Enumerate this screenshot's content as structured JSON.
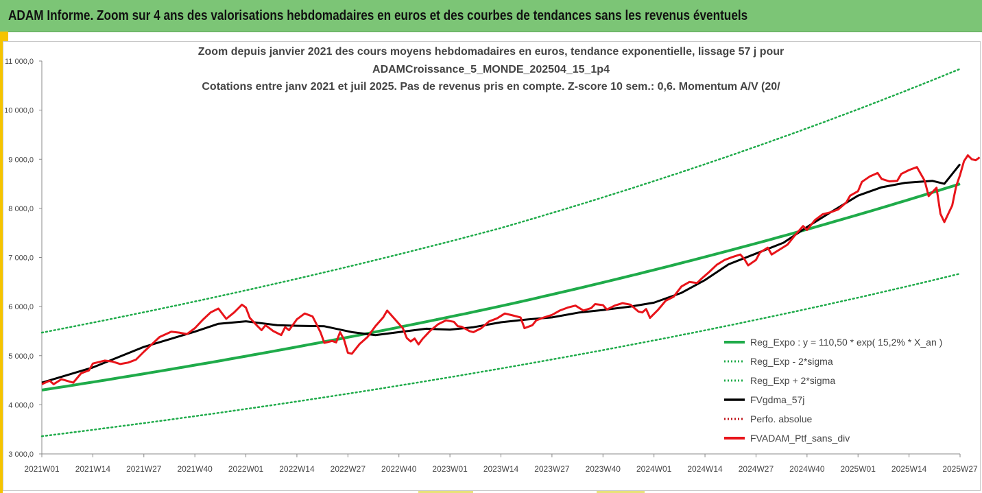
{
  "header": {
    "title": "ADAM Informe. Zoom sur 4 ans des valorisations hebdomadaires en euros et des courbes de tendances sans les revenus éventuels"
  },
  "colors": {
    "header_bg": "#7cc576",
    "accent": "#f5c400",
    "regression": "#1fab4a",
    "moving_average": "#000000",
    "portfolio": "#e8141a"
  },
  "chart_data": {
    "type": "line",
    "title_lines": [
      "Zoom depuis janvier 2021 des cours moyens hebdomadaires  en euros, tendance exponentielle, lissage 57 j pour",
      "ADAMCroissance_5_MONDE_202504_15_1p4",
      "Cotations entre janv 2021 et juil 2025. Pas de revenus pris en compte. Z-score 10 sem.: 0,6. Momentum  A/V (20/"
    ],
    "ylim": [
      3000,
      11000
    ],
    "y_ticks": [
      "3 000,0",
      "4 000,0",
      "5 000,0",
      "6 000,0",
      "7 000,0",
      "8 000,0",
      "9 000,0",
      "10 000,0",
      "11 000,0"
    ],
    "x_ticks": [
      "2021W01",
      "2021W14",
      "2021W27",
      "2021W40",
      "2022W01",
      "2022W14",
      "2022W27",
      "2022W40",
      "2023W01",
      "2023W14",
      "2023W27",
      "2023W40",
      "2024W01",
      "2024W14",
      "2024W27",
      "2024W40",
      "2025W01",
      "2025W14",
      "2025W27"
    ],
    "x_range_weeks": [
      0,
      234
    ],
    "grid": false,
    "legend_position": "bottom-right",
    "series": [
      {
        "name": "Reg_Expo : y = 110,50 * exp( 15,2% *  X_an )",
        "style": "solid-green",
        "points": [
          [
            0,
            4300
          ],
          [
            117,
            6010
          ],
          [
            234,
            8500
          ]
        ]
      },
      {
        "name": "Reg_Exp - 2*sigma",
        "style": "dotted-green",
        "points": [
          [
            0,
            3360
          ],
          [
            117,
            4740
          ],
          [
            234,
            6670
          ]
        ]
      },
      {
        "name": "Reg_Exp + 2*sigma",
        "style": "dotted-green",
        "points": [
          [
            0,
            5470
          ],
          [
            117,
            7600
          ],
          [
            234,
            10840
          ]
        ]
      },
      {
        "name": "FVgdma_57j",
        "style": "solid-black",
        "points": [
          [
            0,
            4450
          ],
          [
            13,
            4760
          ],
          [
            26,
            5180
          ],
          [
            39,
            5490
          ],
          [
            45,
            5650
          ],
          [
            52,
            5700
          ],
          [
            60,
            5620
          ],
          [
            65,
            5610
          ],
          [
            72,
            5600
          ],
          [
            79,
            5480
          ],
          [
            85,
            5420
          ],
          [
            91,
            5480
          ],
          [
            98,
            5550
          ],
          [
            104,
            5530
          ],
          [
            110,
            5580
          ],
          [
            117,
            5680
          ],
          [
            124,
            5740
          ],
          [
            130,
            5780
          ],
          [
            137,
            5880
          ],
          [
            143,
            5930
          ],
          [
            150,
            6000
          ],
          [
            156,
            6080
          ],
          [
            163,
            6280
          ],
          [
            169,
            6540
          ],
          [
            175,
            6860
          ],
          [
            182,
            7080
          ],
          [
            189,
            7300
          ],
          [
            195,
            7620
          ],
          [
            201,
            7920
          ],
          [
            208,
            8260
          ],
          [
            214,
            8430
          ],
          [
            220,
            8520
          ],
          [
            227,
            8560
          ],
          [
            230,
            8500
          ],
          [
            234,
            8900
          ]
        ]
      },
      {
        "name": "Perfo. absolue",
        "style": "dotted-red",
        "points": []
      },
      {
        "name": "FVADAM_Ptf_sans_div",
        "style": "solid-red",
        "points": [
          [
            0,
            4420
          ],
          [
            2,
            4490
          ],
          [
            3,
            4420
          ],
          [
            5,
            4520
          ],
          [
            8,
            4450
          ],
          [
            10,
            4640
          ],
          [
            12,
            4700
          ],
          [
            13,
            4840
          ],
          [
            16,
            4900
          ],
          [
            18,
            4880
          ],
          [
            20,
            4830
          ],
          [
            22,
            4860
          ],
          [
            24,
            4920
          ],
          [
            26,
            5080
          ],
          [
            28,
            5230
          ],
          [
            30,
            5380
          ],
          [
            33,
            5490
          ],
          [
            35,
            5470
          ],
          [
            37,
            5440
          ],
          [
            39,
            5560
          ],
          [
            41,
            5730
          ],
          [
            43,
            5880
          ],
          [
            45,
            5960
          ],
          [
            47,
            5750
          ],
          [
            49,
            5880
          ],
          [
            50,
            5960
          ],
          [
            51,
            6040
          ],
          [
            52,
            5980
          ],
          [
            53,
            5770
          ],
          [
            55,
            5600
          ],
          [
            56,
            5520
          ],
          [
            57,
            5620
          ],
          [
            59,
            5500
          ],
          [
            61,
            5420
          ],
          [
            62,
            5580
          ],
          [
            63,
            5520
          ],
          [
            65,
            5740
          ],
          [
            67,
            5860
          ],
          [
            69,
            5800
          ],
          [
            70,
            5640
          ],
          [
            71,
            5480
          ],
          [
            72,
            5260
          ],
          [
            74,
            5300
          ],
          [
            75,
            5270
          ],
          [
            76,
            5480
          ],
          [
            77,
            5330
          ],
          [
            78,
            5060
          ],
          [
            79,
            5040
          ],
          [
            81,
            5240
          ],
          [
            83,
            5380
          ],
          [
            85,
            5600
          ],
          [
            87,
            5780
          ],
          [
            88,
            5920
          ],
          [
            90,
            5740
          ],
          [
            92,
            5560
          ],
          [
            93,
            5360
          ],
          [
            94,
            5290
          ],
          [
            95,
            5350
          ],
          [
            96,
            5230
          ],
          [
            97,
            5340
          ],
          [
            99,
            5510
          ],
          [
            101,
            5640
          ],
          [
            103,
            5720
          ],
          [
            105,
            5690
          ],
          [
            106,
            5600
          ],
          [
            107,
            5590
          ],
          [
            109,
            5500
          ],
          [
            110,
            5480
          ],
          [
            112,
            5560
          ],
          [
            114,
            5700
          ],
          [
            116,
            5760
          ],
          [
            118,
            5860
          ],
          [
            120,
            5820
          ],
          [
            122,
            5780
          ],
          [
            123,
            5560
          ],
          [
            125,
            5620
          ],
          [
            126,
            5720
          ],
          [
            128,
            5780
          ],
          [
            130,
            5830
          ],
          [
            132,
            5920
          ],
          [
            134,
            5980
          ],
          [
            136,
            6020
          ],
          [
            138,
            5920
          ],
          [
            140,
            5970
          ],
          [
            141,
            6050
          ],
          [
            143,
            6030
          ],
          [
            144,
            5940
          ],
          [
            146,
            6020
          ],
          [
            148,
            6070
          ],
          [
            150,
            6040
          ],
          [
            152,
            5900
          ],
          [
            153,
            5880
          ],
          [
            154,
            5950
          ],
          [
            155,
            5770
          ],
          [
            157,
            5930
          ],
          [
            159,
            6120
          ],
          [
            161,
            6200
          ],
          [
            163,
            6410
          ],
          [
            165,
            6500
          ],
          [
            167,
            6480
          ],
          [
            168,
            6560
          ],
          [
            170,
            6700
          ],
          [
            172,
            6850
          ],
          [
            174,
            6950
          ],
          [
            176,
            7010
          ],
          [
            178,
            7060
          ],
          [
            179,
            6970
          ],
          [
            180,
            6840
          ],
          [
            182,
            6950
          ],
          [
            183,
            7100
          ],
          [
            185,
            7200
          ],
          [
            186,
            7060
          ],
          [
            188,
            7160
          ],
          [
            190,
            7260
          ],
          [
            192,
            7460
          ],
          [
            194,
            7640
          ],
          [
            195,
            7560
          ],
          [
            197,
            7760
          ],
          [
            199,
            7880
          ],
          [
            201,
            7920
          ],
          [
            203,
            7980
          ],
          [
            205,
            8120
          ],
          [
            206,
            8260
          ],
          [
            208,
            8350
          ],
          [
            209,
            8540
          ],
          [
            211,
            8650
          ],
          [
            213,
            8720
          ],
          [
            214,
            8600
          ],
          [
            216,
            8550
          ],
          [
            218,
            8560
          ],
          [
            219,
            8700
          ],
          [
            221,
            8780
          ],
          [
            223,
            8840
          ],
          [
            224,
            8700
          ],
          [
            225,
            8560
          ],
          [
            226,
            8250
          ],
          [
            228,
            8420
          ],
          [
            229,
            7890
          ],
          [
            230,
            7720
          ],
          [
            232,
            8060
          ],
          [
            233,
            8450
          ],
          [
            234,
            8680
          ],
          [
            235,
            8960
          ],
          [
            236,
            9080
          ],
          [
            237,
            9000
          ],
          [
            238,
            8980
          ],
          [
            239,
            9040
          ]
        ]
      }
    ]
  }
}
